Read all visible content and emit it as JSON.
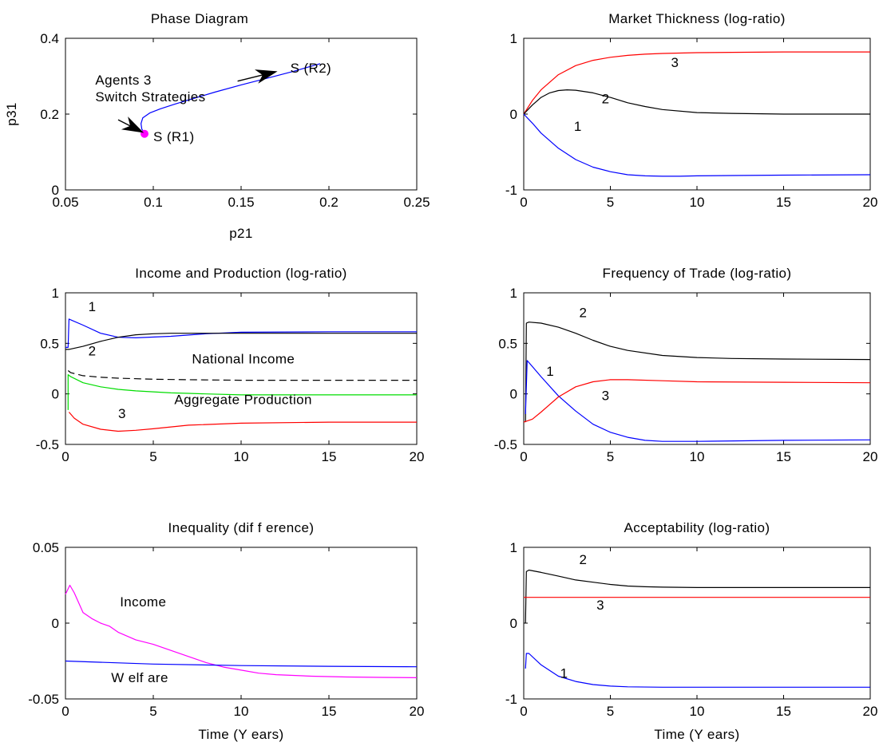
{
  "chart_data": [
    {
      "id": "phase",
      "type": "line",
      "title": "Phase Diagram",
      "xlabel": "p21",
      "ylabel": "p31",
      "xlim": [
        0.05,
        0.25
      ],
      "ylim": [
        0,
        0.4
      ],
      "xticks": [
        0.05,
        0.1,
        0.15,
        0.2,
        0.25
      ],
      "xtick_labels": [
        "0.05",
        "0.1",
        "0.15",
        "0.2",
        "0.25"
      ],
      "yticks": [
        0,
        0.2,
        0.4
      ],
      "ytick_labels": [
        "0",
        "0.2",
        "0.4"
      ],
      "series": [
        {
          "color": "#0000ff",
          "x": [
            0.0955,
            0.0935,
            0.093,
            0.094,
            0.098,
            0.104,
            0.112,
            0.122,
            0.135,
            0.15,
            0.165,
            0.18,
            0.195
          ],
          "y": [
            0.148,
            0.16,
            0.175,
            0.19,
            0.203,
            0.214,
            0.226,
            0.24,
            0.258,
            0.277,
            0.295,
            0.313,
            0.333
          ]
        }
      ],
      "markers": [
        {
          "x": 0.095,
          "y": 0.148,
          "color": "#ff00ff"
        }
      ],
      "arrows": [
        {
          "from": [
            0.08,
            0.185
          ],
          "to": [
            0.094,
            0.152
          ]
        },
        {
          "from": [
            0.148,
            0.287
          ],
          "to": [
            0.17,
            0.312
          ]
        }
      ],
      "annotations": [
        {
          "text": "Agents 3",
          "x": 0.067,
          "y": 0.278
        },
        {
          "text": "Switch Strategies",
          "x": 0.067,
          "y": 0.234
        },
        {
          "text": "S (R1)",
          "x": 0.1,
          "y": 0.128
        },
        {
          "text": "S (R2)",
          "x": 0.178,
          "y": 0.31
        }
      ]
    },
    {
      "id": "thickness",
      "type": "line",
      "title": "Market Thickness (log-ratio)",
      "xlabel": "",
      "xlim": [
        0,
        20
      ],
      "ylim": [
        -1,
        1
      ],
      "xticks": [
        0,
        5,
        10,
        15,
        20
      ],
      "xtick_labels": [
        "0",
        "5",
        "10",
        "15",
        "20"
      ],
      "yticks": [
        -1,
        0,
        1
      ],
      "ytick_labels": [
        "-1",
        "0",
        "1"
      ],
      "series": [
        {
          "name": "3",
          "color": "#ff0000",
          "x": [
            0,
            0.5,
            1,
            2,
            3,
            4,
            5,
            6,
            7,
            8,
            10,
            12,
            15,
            20
          ],
          "y": [
            0,
            0.18,
            0.32,
            0.52,
            0.64,
            0.71,
            0.75,
            0.775,
            0.79,
            0.8,
            0.81,
            0.815,
            0.82,
            0.82
          ]
        },
        {
          "name": "2",
          "color": "#000000",
          "x": [
            0,
            0.5,
            1,
            1.5,
            2,
            2.5,
            3,
            4,
            5,
            6,
            7,
            8,
            10,
            12,
            15,
            20
          ],
          "y": [
            0,
            0.12,
            0.22,
            0.28,
            0.31,
            0.32,
            0.315,
            0.28,
            0.22,
            0.15,
            0.1,
            0.06,
            0.02,
            0.01,
            0,
            0
          ]
        },
        {
          "name": "1",
          "color": "#0000ff",
          "x": [
            0,
            0.5,
            1,
            2,
            3,
            4,
            5,
            6,
            7,
            8,
            9,
            10,
            12,
            15,
            20
          ],
          "y": [
            0,
            -0.12,
            -0.25,
            -0.45,
            -0.6,
            -0.7,
            -0.76,
            -0.8,
            -0.815,
            -0.82,
            -0.82,
            -0.815,
            -0.81,
            -0.805,
            -0.8
          ]
        }
      ],
      "annotations": [
        {
          "text": "3",
          "x": 8.5,
          "y": 0.62
        },
        {
          "text": "2",
          "x": 4.5,
          "y": 0.14
        },
        {
          "text": "1",
          "x": 2.9,
          "y": -0.22
        }
      ]
    },
    {
      "id": "income",
      "type": "line",
      "title": "Income and Production (log-ratio)",
      "xlabel": "",
      "xlim": [
        0,
        20
      ],
      "ylim": [
        -0.5,
        1
      ],
      "xticks": [
        0,
        5,
        10,
        15,
        20
      ],
      "xtick_labels": [
        "0",
        "5",
        "10",
        "15",
        "20"
      ],
      "yticks": [
        -0.5,
        0,
        0.5,
        1
      ],
      "ytick_labels": [
        "-0.5",
        "0",
        "0.5",
        "1"
      ],
      "series": [
        {
          "name": "1",
          "color": "#0000ff",
          "x": [
            0,
            0.15,
            0.2,
            1,
            2,
            3,
            4,
            6,
            8,
            10,
            15,
            20
          ],
          "y": [
            0.46,
            0.46,
            0.74,
            0.68,
            0.6,
            0.56,
            0.555,
            0.57,
            0.595,
            0.61,
            0.615,
            0.615
          ]
        },
        {
          "name": "2",
          "color": "#000000",
          "x": [
            0,
            0.2,
            1,
            2,
            3,
            4,
            5,
            6,
            8,
            10,
            15,
            20
          ],
          "y": [
            0.44,
            0.44,
            0.47,
            0.52,
            0.56,
            0.585,
            0.595,
            0.6,
            0.6,
            0.6,
            0.6,
            0.6
          ]
        },
        {
          "name": "National Income",
          "color": "#000000",
          "dash": true,
          "x": [
            0.15,
            0.3,
            1,
            2,
            3,
            5,
            7,
            10,
            15,
            20
          ],
          "y": [
            0.23,
            0.21,
            0.18,
            0.165,
            0.155,
            0.145,
            0.14,
            0.135,
            0.135,
            0.135
          ]
        },
        {
          "name": "Aggregate Production",
          "color": "#00dd00",
          "x": [
            0.15,
            0.15,
            0.3,
            1,
            2,
            3,
            4,
            5,
            6,
            7,
            8,
            10,
            15,
            20
          ],
          "y": [
            -0.16,
            0.19,
            0.17,
            0.11,
            0.07,
            0.045,
            0.03,
            0.02,
            0.01,
            0.005,
            0,
            -0.01,
            -0.01,
            -0.01
          ]
        },
        {
          "name": "3",
          "color": "#ff0000",
          "x": [
            0.2,
            0.5,
            1,
            2,
            3,
            4,
            5,
            7,
            10,
            15,
            20
          ],
          "y": [
            -0.18,
            -0.24,
            -0.3,
            -0.35,
            -0.37,
            -0.36,
            -0.345,
            -0.31,
            -0.29,
            -0.28,
            -0.28
          ]
        }
      ],
      "annotations": [
        {
          "text": "1",
          "x": 1.3,
          "y": 0.82
        },
        {
          "text": "2",
          "x": 1.3,
          "y": 0.38
        },
        {
          "text": "National Income",
          "x": 7.2,
          "y": 0.3
        },
        {
          "text": "Aggregate Production",
          "x": 6.2,
          "y": -0.1
        },
        {
          "text": "3",
          "x": 3,
          "y": -0.24
        }
      ]
    },
    {
      "id": "frequency",
      "type": "line",
      "title": "Frequency of Trade (log-ratio)",
      "xlabel": "",
      "xlim": [
        0,
        20
      ],
      "ylim": [
        -0.5,
        1
      ],
      "xticks": [
        0,
        5,
        10,
        15,
        20
      ],
      "xtick_labels": [
        "0",
        "5",
        "10",
        "15",
        "20"
      ],
      "yticks": [
        -0.5,
        0,
        0.5,
        1
      ],
      "ytick_labels": [
        "-0.5",
        "0",
        "0.5",
        "1"
      ],
      "series": [
        {
          "name": "2",
          "color": "#000000",
          "x": [
            0.1,
            0.15,
            0.3,
            1,
            2,
            3,
            4,
            5,
            6,
            8,
            10,
            12,
            15,
            20
          ],
          "y": [
            -0.28,
            0.7,
            0.71,
            0.7,
            0.66,
            0.6,
            0.53,
            0.47,
            0.43,
            0.38,
            0.36,
            0.35,
            0.345,
            0.34
          ]
        },
        {
          "name": "1",
          "color": "#0000ff",
          "x": [
            0.1,
            0.2,
            0.5,
            1,
            2,
            3,
            4,
            5,
            6,
            7,
            8,
            10,
            15,
            20
          ],
          "y": [
            -0.2,
            0.33,
            0.27,
            0.17,
            -0.02,
            -0.17,
            -0.3,
            -0.38,
            -0.43,
            -0.46,
            -0.47,
            -0.47,
            -0.46,
            -0.455
          ]
        },
        {
          "name": "3",
          "color": "#ff0000",
          "x": [
            0,
            0.5,
            1,
            2,
            3,
            4,
            5,
            6,
            8,
            10,
            15,
            20
          ],
          "y": [
            -0.28,
            -0.25,
            -0.18,
            -0.03,
            0.07,
            0.12,
            0.14,
            0.14,
            0.13,
            0.12,
            0.115,
            0.11
          ]
        }
      ],
      "annotations": [
        {
          "text": "2",
          "x": 3.2,
          "y": 0.76
        },
        {
          "text": "1",
          "x": 1.3,
          "y": 0.18
        },
        {
          "text": "3",
          "x": 4.5,
          "y": -0.06
        }
      ]
    },
    {
      "id": "inequality",
      "type": "line",
      "title": "Inequality (dif f erence)",
      "xlabel": "Time (Y ears)",
      "xlim": [
        0,
        20
      ],
      "ylim": [
        -0.05,
        0.05
      ],
      "xticks": [
        0,
        5,
        10,
        15,
        20
      ],
      "xtick_labels": [
        "0",
        "5",
        "10",
        "15",
        "20"
      ],
      "yticks": [
        -0.05,
        0,
        0.05
      ],
      "ytick_labels": [
        "-0.05",
        "0",
        "0.05"
      ],
      "series": [
        {
          "name": "Income",
          "color": "#ff00ff",
          "x": [
            0,
            0.25,
            0.5,
            1,
            1.5,
            2,
            2.5,
            3,
            4,
            5,
            6,
            7,
            8,
            9,
            10,
            11,
            12,
            14,
            16,
            18,
            20
          ],
          "y": [
            0.019,
            0.025,
            0.02,
            0.007,
            0.003,
            0.0,
            -0.002,
            -0.006,
            -0.011,
            -0.014,
            -0.018,
            -0.022,
            -0.026,
            -0.029,
            -0.031,
            -0.033,
            -0.034,
            -0.035,
            -0.0355,
            -0.0358,
            -0.036
          ]
        },
        {
          "name": "Welfare",
          "color": "#0000ff",
          "x": [
            0,
            5,
            10,
            15,
            20
          ],
          "y": [
            -0.025,
            -0.027,
            -0.028,
            -0.0285,
            -0.0288
          ]
        }
      ],
      "annotations": [
        {
          "text": "Income",
          "x": 3.1,
          "y": 0.011
        },
        {
          "text": "W elf are",
          "x": 2.6,
          "y": -0.039
        }
      ]
    },
    {
      "id": "acceptability",
      "type": "line",
      "title": "Acceptability (log-ratio)",
      "xlabel": "Time (Y ears)",
      "xlim": [
        0,
        20
      ],
      "ylim": [
        -1,
        1
      ],
      "xticks": [
        0,
        5,
        10,
        15,
        20
      ],
      "xtick_labels": [
        "0",
        "5",
        "10",
        "15",
        "20"
      ],
      "yticks": [
        -1,
        0,
        1
      ],
      "ytick_labels": [
        "-1",
        "0",
        "1"
      ],
      "series": [
        {
          "name": "2",
          "color": "#000000",
          "x": [
            0.1,
            0.15,
            0.3,
            1,
            2,
            3,
            4,
            5,
            6,
            7,
            8,
            10,
            15,
            20
          ],
          "y": [
            0,
            0.68,
            0.7,
            0.67,
            0.62,
            0.57,
            0.54,
            0.51,
            0.49,
            0.48,
            0.475,
            0.47,
            0.47,
            0.47
          ]
        },
        {
          "name": "3",
          "color": "#ff0000",
          "x": [
            0,
            20
          ],
          "y": [
            0.34,
            0.34
          ]
        },
        {
          "name": "1",
          "color": "#0000ff",
          "x": [
            0.1,
            0.15,
            0.3,
            1,
            2,
            3,
            4,
            5,
            6,
            8,
            10,
            15,
            20
          ],
          "y": [
            -0.6,
            -0.4,
            -0.4,
            -0.55,
            -0.7,
            -0.77,
            -0.81,
            -0.83,
            -0.84,
            -0.845,
            -0.845,
            -0.845,
            -0.845
          ]
        }
      ],
      "annotations": [
        {
          "text": "2",
          "x": 3.2,
          "y": 0.78
        },
        {
          "text": "3",
          "x": 4.2,
          "y": 0.18
        },
        {
          "text": "1",
          "x": 2.1,
          "y": -0.72
        }
      ]
    }
  ]
}
